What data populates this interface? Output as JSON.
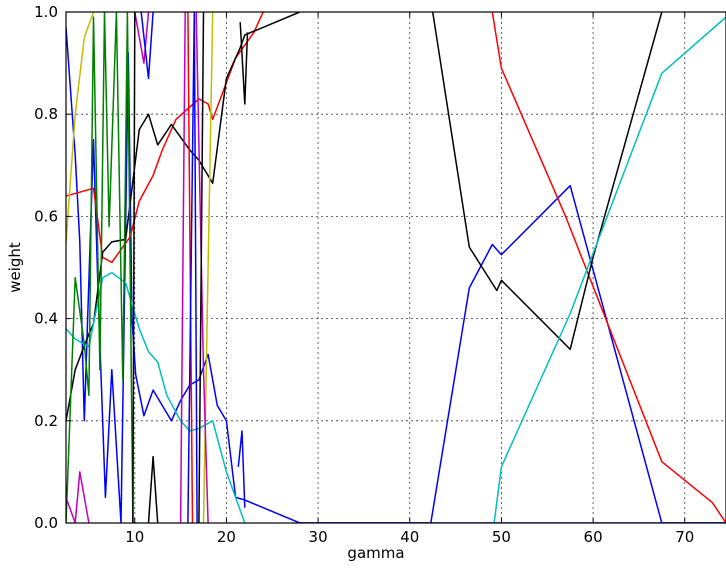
{
  "chart_data": {
    "type": "line",
    "xlabel": "gamma",
    "ylabel": "weight",
    "xlim": [
      2.5,
      74.5
    ],
    "ylim": [
      0,
      1.0
    ],
    "xticks": [
      10,
      20,
      30,
      40,
      50,
      60,
      70
    ],
    "xtick_labels": [
      "10",
      "20",
      "30",
      "40",
      "50",
      "60",
      "70"
    ],
    "yticks": [
      0.0,
      0.2,
      0.4,
      0.6,
      0.8,
      1.0
    ],
    "ytick_labels": [
      "0.0",
      "0.2",
      "0.4",
      "0.6",
      "0.8",
      "1.0"
    ],
    "grid": true,
    "series": [
      {
        "color": "#0000ff",
        "points": [
          [
            2.5,
            0.97
          ],
          [
            3.5,
            0.72
          ],
          [
            4,
            0.55
          ],
          [
            4.5,
            0.2
          ],
          [
            5.5,
            0.75
          ],
          [
            6,
            0.45
          ],
          [
            6.8,
            0.05
          ],
          [
            7.5,
            0.3
          ],
          [
            8.5,
            0.0
          ],
          [
            9.3,
            0.92
          ],
          [
            9.7,
            0.4
          ],
          [
            10.1,
            0.29
          ],
          [
            11,
            0.21
          ],
          [
            12,
            0.26
          ],
          [
            14,
            0.2
          ],
          [
            15,
            0.24
          ],
          [
            16,
            0.27
          ],
          [
            17,
            0.28
          ],
          [
            18,
            0.33
          ],
          [
            19,
            0.23
          ],
          [
            20,
            0.2
          ],
          [
            21,
            0.05
          ],
          [
            22,
            0.045
          ],
          [
            28,
            0.0
          ],
          [
            42,
            0.0
          ]
        ]
      },
      {
        "color": "#0000ff",
        "points": [
          [
            42.3,
            0.0
          ],
          [
            46.5,
            0.46
          ],
          [
            49,
            0.545
          ],
          [
            50,
            0.525
          ],
          [
            57.5,
            0.66
          ],
          [
            67.5,
            0.0
          ],
          [
            74.5,
            0.0
          ]
        ]
      },
      {
        "color": "#ff0000",
        "points": [
          [
            2.5,
            0.64
          ],
          [
            5.5,
            0.655
          ],
          [
            6.5,
            0.52
          ],
          [
            7.5,
            0.51
          ],
          [
            9.5,
            0.56
          ],
          [
            10.5,
            0.63
          ],
          [
            12,
            0.68
          ],
          [
            13,
            0.73
          ],
          [
            14.5,
            0.79
          ],
          [
            17,
            0.83
          ],
          [
            18,
            0.82
          ],
          [
            18.5,
            0.79
          ],
          [
            21,
            0.91
          ],
          [
            23,
            0.96
          ],
          [
            24,
            1.0
          ]
        ]
      },
      {
        "color": "#ff0000",
        "points": [
          [
            49,
            1.0
          ],
          [
            50,
            0.89
          ],
          [
            57,
            0.6
          ],
          [
            67.5,
            0.12
          ],
          [
            73,
            0.04
          ],
          [
            74.5,
            0.0
          ]
        ]
      },
      {
        "color": "#000000",
        "points": [
          [
            2.5,
            0.2
          ],
          [
            3.5,
            0.3
          ],
          [
            5,
            0.37
          ],
          [
            5.5,
            0.39
          ],
          [
            6.5,
            0.53
          ],
          [
            7.5,
            0.55
          ],
          [
            9,
            0.555
          ],
          [
            10.5,
            0.77
          ],
          [
            11.5,
            0.8
          ],
          [
            12.5,
            0.74
          ],
          [
            14,
            0.78
          ],
          [
            16,
            0.73
          ],
          [
            17,
            0.71
          ],
          [
            18.5,
            0.665
          ],
          [
            20,
            0.87
          ],
          [
            21.5,
            0.93
          ],
          [
            22,
            0.955
          ],
          [
            28,
            1.0
          ]
        ]
      },
      {
        "color": "#000000",
        "points": [
          [
            42.5,
            1.0
          ],
          [
            46.5,
            0.54
          ],
          [
            49.5,
            0.455
          ],
          [
            50,
            0.475
          ],
          [
            57.5,
            0.34
          ],
          [
            60,
            0.52
          ],
          [
            67.5,
            1.0
          ]
        ]
      },
      {
        "color": "#00bfbf",
        "points": [
          [
            2.5,
            0.38
          ],
          [
            3.5,
            0.36
          ],
          [
            5,
            0.345
          ],
          [
            6.5,
            0.48
          ],
          [
            7.5,
            0.49
          ],
          [
            9,
            0.47
          ],
          [
            10.5,
            0.38
          ],
          [
            11.5,
            0.335
          ],
          [
            12.5,
            0.315
          ],
          [
            13.5,
            0.25
          ],
          [
            15,
            0.2
          ],
          [
            16,
            0.18
          ],
          [
            17,
            0.185
          ],
          [
            18.5,
            0.2
          ],
          [
            20,
            0.1
          ],
          [
            22,
            0.0
          ]
        ]
      },
      {
        "color": "#00bfbf",
        "points": [
          [
            49.2,
            0.0
          ],
          [
            50,
            0.11
          ],
          [
            57.5,
            0.41
          ],
          [
            67.5,
            0.88
          ],
          [
            74.5,
            0.99
          ]
        ]
      },
      {
        "color": "#008000",
        "points": [
          [
            2.5,
            0.0
          ],
          [
            3.5,
            0.48
          ],
          [
            4.5,
            0.35
          ],
          [
            5,
            0.25
          ],
          [
            5.5,
            0.99
          ],
          [
            6.2,
            0.3
          ],
          [
            6.7,
            1.0
          ],
          [
            7.2,
            0.58
          ],
          [
            8,
            1.0
          ],
          [
            8.7,
            0.28
          ],
          [
            9.2,
            1.0
          ],
          [
            9.8,
            0.0
          ],
          [
            10.2,
            0.0
          ]
        ]
      },
      {
        "color": "#bfbf00",
        "points": [
          [
            2.5,
            0.55
          ],
          [
            3.5,
            0.8
          ],
          [
            4.5,
            0.95
          ],
          [
            5.5,
            1.0
          ]
        ]
      },
      {
        "color": "#bfbf00",
        "points": [
          [
            17.5,
            0.0
          ],
          [
            18.5,
            1.0
          ]
        ]
      },
      {
        "color": "#bf00bf",
        "points": [
          [
            2.5,
            0.05
          ],
          [
            3.5,
            0.0
          ],
          [
            4,
            0.1
          ],
          [
            5,
            0.0
          ]
        ]
      },
      {
        "color": "#bf00bf",
        "points": [
          [
            10,
            1.0
          ],
          [
            11,
            0.9
          ],
          [
            11.5,
            1.0
          ]
        ]
      },
      {
        "color": "#bf00bf",
        "points": [
          [
            15,
            0.0
          ],
          [
            15.5,
            1.0
          ]
        ]
      },
      {
        "color": "#bf00bf",
        "points": [
          [
            16.7,
            1.0
          ],
          [
            17.5,
            0.3
          ],
          [
            18,
            0.0
          ]
        ]
      },
      {
        "color": "#ff0000",
        "points": [
          [
            15.8,
            1.0
          ],
          [
            16.3,
            0.0
          ]
        ]
      },
      {
        "color": "#0000ff",
        "points": [
          [
            15.8,
            0.0
          ],
          [
            16.5,
            1.0
          ],
          [
            16.8,
            0.0
          ]
        ]
      },
      {
        "color": "#000000",
        "points": [
          [
            11.5,
            0.0
          ],
          [
            12,
            0.13
          ],
          [
            12.5,
            0.0
          ]
        ]
      },
      {
        "color": "#000000",
        "points": [
          [
            17,
            0.0
          ],
          [
            17.5,
            1.0
          ]
        ]
      },
      {
        "color": "#000000",
        "points": [
          [
            9.8,
            0.0
          ],
          [
            10,
            1.0
          ]
        ]
      },
      {
        "color": "#000000",
        "points": [
          [
            21.5,
            0.98
          ],
          [
            22,
            0.82
          ],
          [
            22.3,
            0.96
          ]
        ]
      },
      {
        "color": "#0000ff",
        "points": [
          [
            10.7,
            1.0
          ],
          [
            11.5,
            0.87
          ],
          [
            12,
            1.0
          ]
        ]
      },
      {
        "color": "#0000ff",
        "points": [
          [
            21.3,
            0.11
          ],
          [
            21.7,
            0.18
          ],
          [
            22,
            0.03
          ]
        ]
      },
      {
        "color": "#0000ff",
        "points": [
          [
            28,
            0.0
          ],
          [
            74.5,
            0.0
          ]
        ]
      }
    ]
  }
}
